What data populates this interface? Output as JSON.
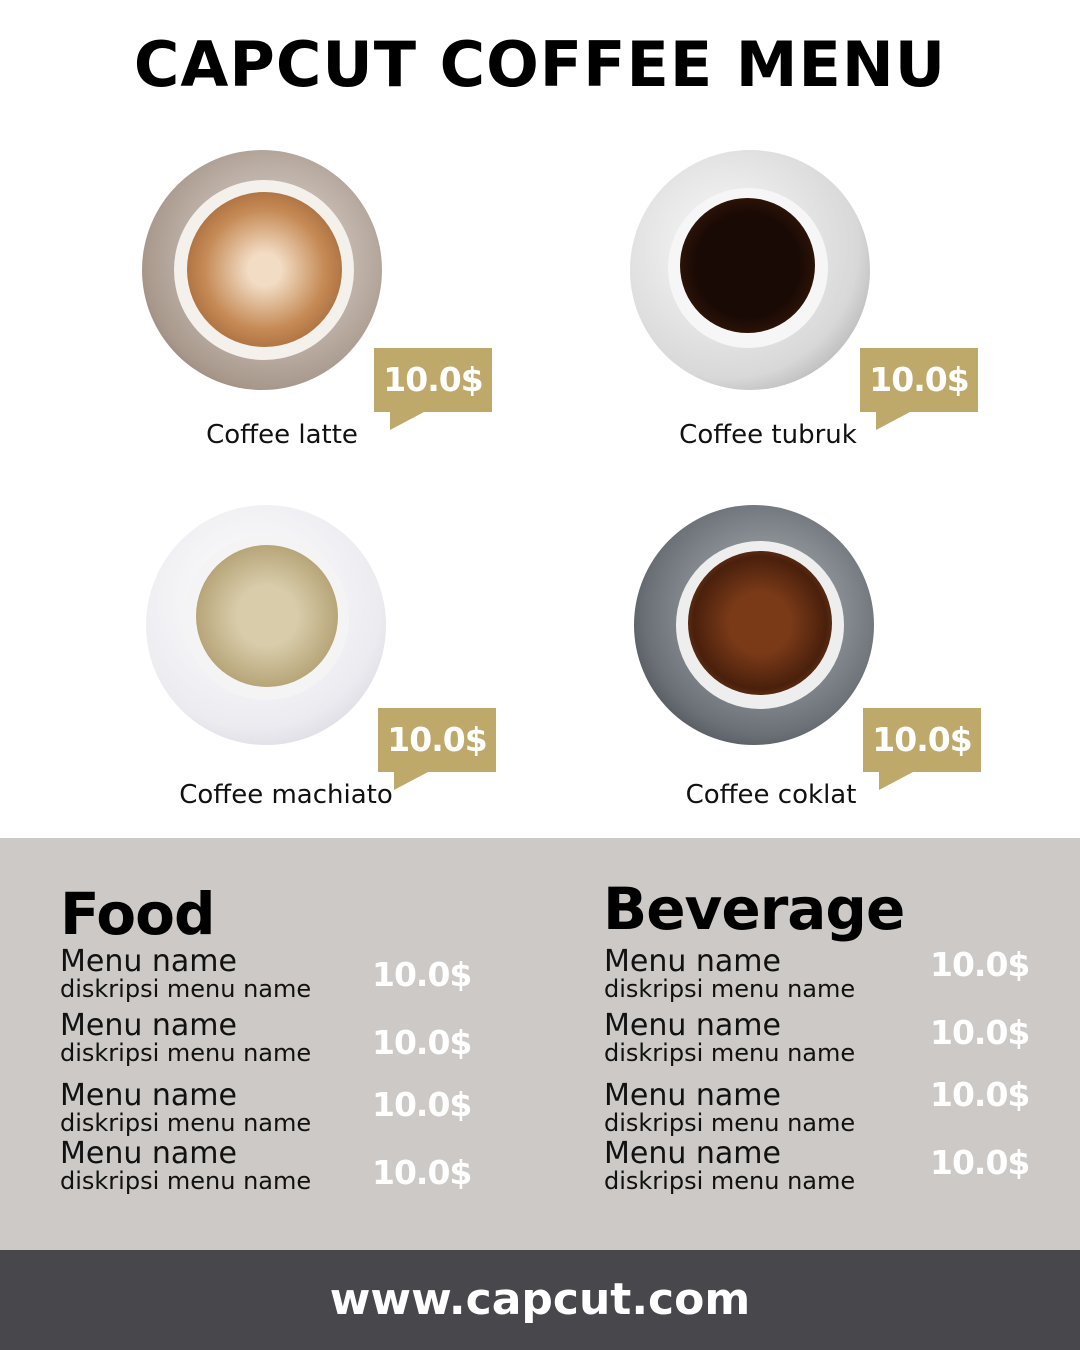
{
  "title": "CAPCUT COFFEE MENU",
  "colors": {
    "accent": "#bfa96a",
    "menu_bg": "#ccc9c6",
    "footer_bg": "#48474c"
  },
  "coffees": [
    {
      "name": "Coffee latte",
      "price": "10.0$"
    },
    {
      "name": "Coffee tubruk",
      "price": "10.0$"
    },
    {
      "name": "Coffee machiato",
      "price": "10.0$"
    },
    {
      "name": "Coffee coklat",
      "price": "10.0$"
    }
  ],
  "food": {
    "heading": "Food",
    "items": [
      {
        "name": "Menu name",
        "desc": "diskripsi menu name",
        "price": "10.0$"
      },
      {
        "name": "Menu name",
        "desc": "diskripsi menu name",
        "price": "10.0$"
      },
      {
        "name": "Menu name",
        "desc": "diskripsi menu name",
        "price": "10.0$"
      },
      {
        "name": "Menu name",
        "desc": "diskripsi menu name",
        "price": "10.0$"
      }
    ]
  },
  "beverage": {
    "heading": "Beverage",
    "items": [
      {
        "name": "Menu name",
        "desc": "diskripsi menu name",
        "price": "10.0$"
      },
      {
        "name": "Menu name",
        "desc": "diskripsi menu name",
        "price": "10.0$"
      },
      {
        "name": "Menu name",
        "desc": "diskripsi menu name",
        "price": "10.0$"
      },
      {
        "name": "Menu name",
        "desc": "diskripsi menu name",
        "price": "10.0$"
      }
    ]
  },
  "footer": "www.capcut.com"
}
